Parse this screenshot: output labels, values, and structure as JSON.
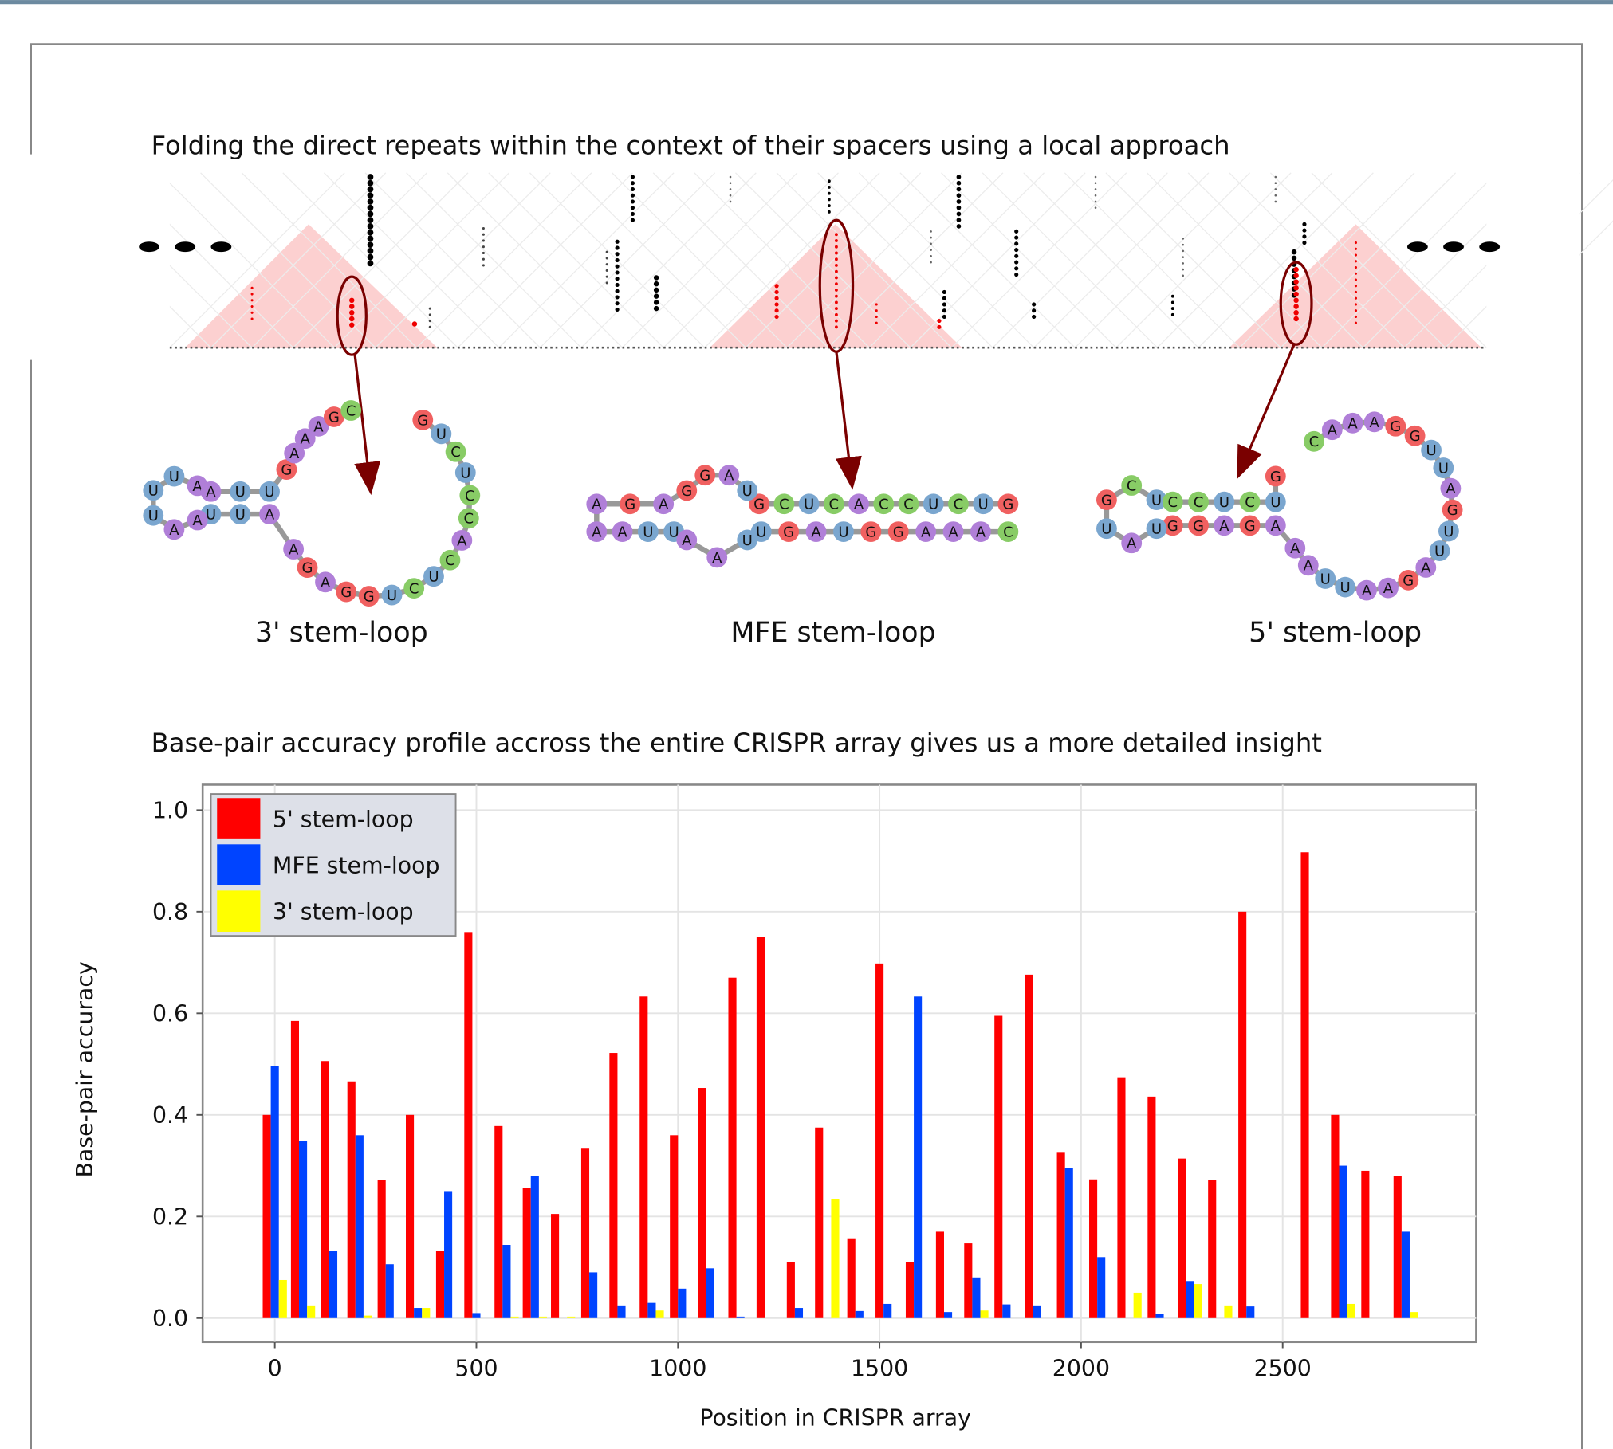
{
  "figure_title": "Folding the direct repeats within the context of their spacers using a local approach",
  "structures": [
    {
      "label": "3' stem-loop",
      "nucleotides": [
        "G",
        "U",
        "C",
        "U",
        "C",
        "C",
        "A",
        "C",
        "U",
        "C",
        "U",
        "G",
        "G",
        "A",
        "G",
        "A",
        "A",
        "U",
        "U",
        "A",
        "A",
        "U",
        "U",
        "U",
        "A",
        "A",
        "U",
        "U",
        "G",
        "A",
        "A",
        "A",
        "G",
        "C"
      ]
    },
    {
      "label": "MFE stem-loop",
      "nucleotides": [
        "G",
        "U",
        "C",
        "U",
        "C",
        "C",
        "A",
        "C",
        "U",
        "C",
        "G",
        "U",
        "A",
        "G",
        "G",
        "A",
        "G",
        "A",
        "A",
        "A",
        "U",
        "U",
        "A",
        "A",
        "U",
        "U",
        "G",
        "A",
        "U",
        "G",
        "G",
        "A",
        "A",
        "A",
        "C"
      ]
    },
    {
      "label": "5' stem-loop",
      "nucleotides": [
        "C",
        "A",
        "A",
        "A",
        "G",
        "G",
        "U",
        "U",
        "A",
        "G",
        "U",
        "U",
        "A",
        "G",
        "A",
        "A",
        "U",
        "U",
        "A",
        "A",
        "A",
        "G",
        "A",
        "G",
        "G",
        "U",
        "A",
        "U",
        "G",
        "C",
        "U",
        "C",
        "C",
        "U",
        "C",
        "U",
        "G"
      ]
    }
  ],
  "chart_data": {
    "type": "bar",
    "title": "Base-pair accuracy profile accross the entire CRISPR array gives us a more detailed insight",
    "xlabel": "Position in CRISPR array",
    "ylabel": "Base-pair accuracy",
    "x": [
      0,
      70,
      145,
      210,
      285,
      355,
      430,
      500,
      575,
      645,
      715,
      790,
      860,
      935,
      1010,
      1080,
      1155,
      1225,
      1300,
      1370,
      1450,
      1520,
      1595,
      1670,
      1740,
      1815,
      1890,
      1970,
      2050,
      2120,
      2195,
      2270,
      2345,
      2420,
      2575,
      2650,
      2725,
      2805
    ],
    "series": [
      {
        "name": "5' stem-loop",
        "color": "#ff0000",
        "values": [
          0.4,
          0.585,
          0.506,
          0.466,
          0.272,
          0.4,
          0.132,
          0.76,
          0.378,
          0.256,
          0.205,
          0.335,
          0.522,
          0.633,
          0.36,
          0.453,
          0.67,
          0.75,
          0.11,
          0.375,
          0.157,
          0.698,
          0.11,
          0.17,
          0.147,
          0.595,
          0.676,
          0.327,
          0.273,
          0.474,
          0.436,
          0.314,
          0.272,
          0.8,
          0.917,
          0.4,
          0.29,
          0.28
        ]
      },
      {
        "name": "MFE stem-loop",
        "color": "#0044ff",
        "values": [
          0.496,
          0.348,
          0.132,
          0.36,
          0.106,
          0.02,
          0.25,
          0.01,
          0.144,
          0.28,
          0,
          0.09,
          0.025,
          0.03,
          0.058,
          0.098,
          0.003,
          0,
          0.02,
          0,
          0.014,
          0.028,
          0.633,
          0.012,
          0.08,
          0.027,
          0.025,
          0.295,
          0.12,
          0,
          0.008,
          0.073,
          0,
          0.023,
          0,
          0.3,
          0,
          0.17
        ]
      },
      {
        "name": "3' stem-loop",
        "color": "#ffff00",
        "values": [
          0.075,
          0.025,
          0,
          0.005,
          0,
          0.02,
          0,
          0,
          0.003,
          0.003,
          0.003,
          0,
          0,
          0.015,
          0,
          0,
          0,
          0,
          0,
          0.235,
          0,
          0,
          0,
          0,
          0.015,
          0,
          0,
          0,
          0,
          0.05,
          0,
          0.067,
          0.025,
          0,
          0,
          0.028,
          0,
          0.012
        ]
      }
    ],
    "xlim": [
      -179,
      2980
    ],
    "ylim": [
      -0.047,
      1.05
    ],
    "xticks": [
      0,
      500,
      1000,
      1500,
      2000,
      2500
    ],
    "yticks": [
      {
        "value": 0,
        "label": "0.0"
      },
      0.2,
      0.4,
      0.6,
      0.8,
      {
        "value": 1,
        "label": "1.0"
      }
    ],
    "grid": true,
    "legend": "upper left"
  }
}
